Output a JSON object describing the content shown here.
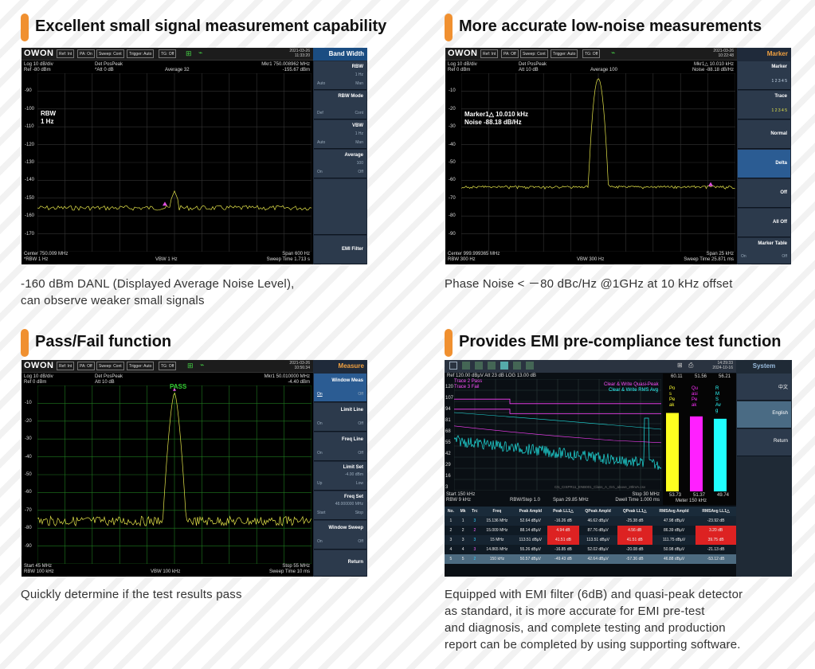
{
  "panels": [
    {
      "title": "Excellent small signal measurement capability",
      "caption1": "-160 dBm DANL (Displayed Average Noise Level),",
      "caption2": "can observe weaker small signals"
    },
    {
      "title": "More accurate low-noise measurements",
      "caption1": "Phase Noise < －80 dBc/Hz @1GHz at 10 kHz offset",
      "caption2": ""
    },
    {
      "title": "Pass/Fail function",
      "caption1": "Quickly determine if the test results pass",
      "caption2": ""
    },
    {
      "title": "Provides EMI pre-compliance test function",
      "caption1": "Equipped with EMI filter (6dB) and quasi-peak detector",
      "caption2": "as standard, it is more accurate for EMI pre-test",
      "caption3": "and diagnosis, and complete testing and production",
      "caption4": "report can be completed by using supporting software."
    }
  ],
  "scr1": {
    "logo": "OWON",
    "chips": [
      "Ref: Int",
      "PA: On",
      "Sweep: Cont",
      "Trigger: Auto",
      "TG: Off"
    ],
    "date": "2021-03-26",
    "time": "11:33:20",
    "menu": "Band Width",
    "info_tl1": "Log 10 dB/div",
    "info_tl2": "Ref -80 dBm",
    "info_tm1": "Det PosPeak",
    "info_tm2": "*Att 0 dB",
    "info_avg": "Average 32",
    "mkr1": "Mkr1  750.008962 MHz",
    "mkr2": "-155.67 dBm",
    "big1": "RBW",
    "big2": "1 Hz",
    "yl": [
      "-90",
      "-100",
      "-110",
      "-120",
      "-130",
      "-140",
      "-150",
      "-160",
      "-170"
    ],
    "bl1": "Center 750.009 MHz",
    "bl2": "*RBW 1 Hz",
    "bm": "VBW 1 Hz",
    "br1": "Span 600 Hz",
    "br2": "Sweep Time 1.713 s",
    "btns": [
      {
        "l": "RBW",
        "v": "1 Hz",
        "o": "Auto",
        "f": "Man"
      },
      {
        "l": "RBW Mode",
        "v": "",
        "o": "Def",
        "f": "Cont"
      },
      {
        "l": "VBW",
        "v": "1 Hz",
        "o": "Auto",
        "f": "Man"
      },
      {
        "l": "Average",
        "v": "100",
        "o": "On",
        "f": "Off"
      },
      {
        "l": "",
        "v": "",
        "o": "",
        "f": ""
      },
      {
        "l": "EMI Filter",
        "v": "",
        "o": "",
        "f": ""
      }
    ]
  },
  "scr2": {
    "logo": "OWON",
    "chips": [
      "Ref: Int",
      "PA: Off",
      "Sweep: Cont",
      "Trigger: Auto",
      "TG: Off"
    ],
    "date": "2021-03-26",
    "time": "10:22:48",
    "menu": "Marker",
    "info_tl1": "Log 10 dB/div",
    "info_tl2": "Ref 0 dBm",
    "info_tm1": "Det PosPeak",
    "info_tm2": "Att 10 dB",
    "info_avg": "Average 100",
    "mkr1": "Mkr1△  10.010 kHz",
    "mkr2": "Noise  -88.18 dB/Hz",
    "big1": "Marker1△ 10.010 kHz",
    "big2": "Noise  -88.18 dB/Hz",
    "yl": [
      "-10",
      "-20",
      "-30",
      "-40",
      "-50",
      "-60",
      "-70",
      "-80",
      "-90"
    ],
    "bl1": "Center 999.999365 MHz",
    "bl2": "RBW 300 Hz",
    "bm": "VBW 300 Hz",
    "br1": "Span 25 kHz",
    "br2": "Sweep Time 25.871 ms",
    "btns": [
      {
        "l": "Marker",
        "v": "1  2  3  4  5",
        "o": "",
        "f": ""
      },
      {
        "l": "Trace",
        "v": "1  2  3  4  5",
        "o": "",
        "f": ""
      },
      {
        "l": "Normal",
        "v": "",
        "o": "",
        "f": ""
      },
      {
        "l": "Delta",
        "v": "",
        "o": "",
        "f": ""
      },
      {
        "l": "Off",
        "v": "",
        "o": "",
        "f": ""
      },
      {
        "l": "All Off",
        "v": "",
        "o": "",
        "f": ""
      },
      {
        "l": "Marker Table",
        "v": "",
        "o": "On",
        "f": "Off"
      }
    ]
  },
  "scr3": {
    "logo": "OWON",
    "chips": [
      "Ref: Int",
      "PA: Off",
      "Sweep: Cont",
      "Trigger: Auto",
      "TG: Off"
    ],
    "date": "2021-03-26",
    "time": "10:56:34",
    "menu": "Measure",
    "info_tl1": "Log 10 dB/div",
    "info_tl2": "Ref 0 dBm",
    "info_tm1": "Det PosPeak",
    "info_tm2": "Att 10 dB",
    "pass": "PASS",
    "mkr1": "Mkr1  50.010000 MHz",
    "mkr2": "-4.40 dBm",
    "yl": [
      "-10",
      "-20",
      "-30",
      "-40",
      "-50",
      "-60",
      "-70",
      "-80",
      "-90"
    ],
    "bl1": "Start 45 MHz",
    "bl2": "RBW 100 kHz",
    "bm": "VBW 100 kHz",
    "br1": "Stop 55 MHz",
    "br2": "Sweep Time 10 ms",
    "btns": [
      {
        "l": "Window Meas",
        "v": "",
        "o": "On",
        "f": "Off"
      },
      {
        "l": "Limit Line",
        "v": "",
        "o": "On",
        "f": "Off"
      },
      {
        "l": "Freq Line",
        "v": "",
        "o": "On",
        "f": "Off"
      },
      {
        "l": "Limit Set",
        "v": "-4.00 dBm",
        "o": "Up",
        "f": "Low"
      },
      {
        "l": "Freq Set",
        "v": "48.000000 MHz",
        "o": "Start",
        "f": "Stop"
      },
      {
        "l": "Window Sweep",
        "v": "",
        "o": "On",
        "f": "Off"
      },
      {
        "l": "Return",
        "v": "",
        "o": "",
        "f": ""
      }
    ]
  },
  "scr4": {
    "date": "14:29:33",
    "time": "2024-10-16",
    "menu": "System",
    "hdr": "Ref 120.00 dBµV  Att 23 dB  LOG 13.00 dB",
    "t2p": "Trace 2 Pass",
    "t3f": "Trace 3 Fail",
    "l1": "Clear & Write Quasi-Peak",
    "l2": "Clear & Write RMS Avg",
    "yl": [
      "120",
      "107",
      "94",
      "81",
      "68",
      "55",
      "42",
      "29",
      "16",
      "3"
    ],
    "fname": "CN_CISPR11_ENB001_Class_A_Gr1_above_20kVA.csv",
    "bl1": "Start 150 kHz",
    "bl2": "RBW 9 kHz",
    "bm1": "RBW/Step 1.0",
    "bm2": "Span 29.85 MHz",
    "br1": "Stop 30 MHz",
    "br2": "Dwell Time 1.000 ms",
    "meter_top": [
      "60.11",
      "51.56",
      "56.21"
    ],
    "meter_bot": [
      "53.73",
      "51.37",
      "49.74"
    ],
    "meter_lbl": "Meter 150 kHz",
    "vlab1": "Pos Peak",
    "vlab2": "Quasi Peak",
    "vlab3": "RMS Avg",
    "side_btns": [
      "中文",
      "English",
      "Return"
    ],
    "meter_vals": [
      53.73,
      51.37,
      49.74
    ],
    "table": {
      "headers": [
        "No.",
        "Mk",
        "Trc",
        "Freq",
        "Peak Ampld",
        "Peak LL1△",
        "QPeak Ampld",
        "QPeak LL1△",
        "RMSAvg Ampld",
        "RMSAvg LL1△"
      ],
      "rows": [
        [
          "1",
          "3",
          "15.136 MHz",
          "52.64 dBµV",
          "-16.26 dB",
          "46.62 dBµV",
          "-25.38 dB",
          "47.98 dBµV",
          "-23.92 dB"
        ],
        [
          "2",
          "2",
          "15.009 MHz",
          "88.14 dBµV",
          "4.94 dB",
          "87.76 dBµV",
          "4.56 dB",
          "86.39 dBµV",
          "3.20 dB"
        ],
        [
          "3",
          "3",
          "15 MHz",
          "113.51 dBµV",
          "41.51 dB",
          "113.51 dBµV",
          "41.51 dB",
          "111.75 dBµV",
          "39.75 dB"
        ],
        [
          "4",
          "3",
          "14.865 MHz",
          "55.26 dBµV",
          "-16.85 dB",
          "52.02 dBµV",
          "-20.08 dB",
          "50.98 dBµV",
          "-21.13 dB"
        ],
        [
          "5",
          "2",
          "150 kHz",
          "50.57 dBµV",
          "-49.43 dB",
          "42.64 dBµV",
          "-57.36 dB",
          "46.88 dBµV",
          "-53.12 dB"
        ]
      ]
    }
  },
  "colors": {
    "accent": "#f09030",
    "trace": "#e6e64a",
    "grid": "#3a3a3a",
    "passgrid": "#2a8a2a",
    "menu": "#1b4d82"
  }
}
